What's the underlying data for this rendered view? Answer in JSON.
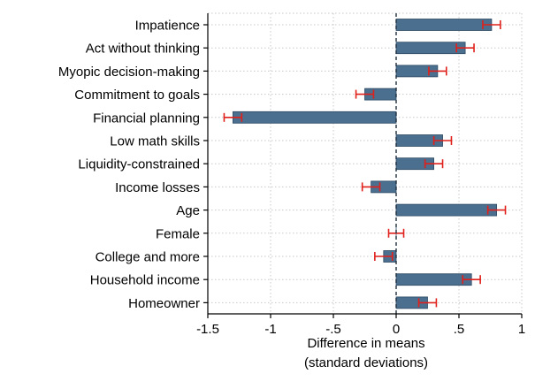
{
  "colors": {
    "bar": "#4a6f8f",
    "bar_stroke": "#2e4a63",
    "error": "#e0201a",
    "grid": "#c8c8c8",
    "zero_line": "#1f2f3f",
    "axis": "#000000"
  },
  "chart_data": {
    "type": "bar",
    "orientation": "horizontal",
    "title": "",
    "xlabel": [
      "Difference in means",
      "(standard deviations)"
    ],
    "ylabel": "",
    "xlim": [
      -1.5,
      1
    ],
    "xticks": [
      -1.5,
      -1,
      -0.5,
      0,
      0.5,
      1
    ],
    "xtick_labels": [
      "-1.5",
      "-1",
      "-.5",
      "0",
      ".5",
      "1"
    ],
    "grid": true,
    "categories": [
      "Impatience",
      "Act without thinking",
      "Myopic decision-making",
      "Commitment to goals",
      "Financial planning",
      "Low math skills",
      "Liquidity-constrained",
      "Income losses",
      "Age",
      "Female",
      "College and more",
      "Household income",
      "Homeowner"
    ],
    "values": [
      0.76,
      0.55,
      0.33,
      -0.25,
      -1.3,
      0.37,
      0.3,
      -0.2,
      0.8,
      0.0,
      -0.1,
      0.6,
      0.25
    ],
    "ci_low": [
      0.69,
      0.48,
      0.26,
      -0.32,
      -1.37,
      0.3,
      0.23,
      -0.27,
      0.73,
      -0.06,
      -0.17,
      0.53,
      0.18
    ],
    "ci_high": [
      0.83,
      0.62,
      0.4,
      -0.18,
      -1.23,
      0.44,
      0.37,
      -0.13,
      0.87,
      0.06,
      -0.03,
      0.67,
      0.32
    ]
  }
}
